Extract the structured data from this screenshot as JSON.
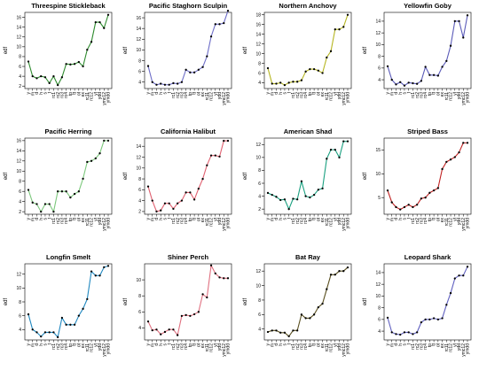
{
  "chart_data": [
    {
      "type": "line",
      "title": "Threespine Stickleback",
      "ylabel": "edf",
      "yticks": [
        2,
        4,
        6,
        8,
        10,
        12,
        14,
        16
      ],
      "ylim": [
        1.5,
        17
      ],
      "color": "#2e8b2e",
      "x": [
        "y",
        "m",
        "d",
        "h",
        "s",
        "t",
        "rc1",
        "rc2",
        "rc3",
        "rc4",
        "tp",
        "tt",
        "ot",
        "ex",
        "rc11",
        "rc12",
        "yt",
        "ydd",
        "ymc12",
        "ymdd"
      ],
      "values": [
        7,
        4,
        3.6,
        4,
        3.8,
        2.6,
        4,
        2.2,
        3.8,
        6.5,
        6.4,
        6.5,
        6.9,
        6,
        9.4,
        11,
        15,
        15,
        13.8,
        16.5
      ]
    },
    {
      "type": "line",
      "title": "Pacific Staghorn Sculpin",
      "ylabel": "edf",
      "yticks": [
        4,
        6,
        8,
        10,
        12,
        14,
        16
      ],
      "ylim": [
        2.8,
        17
      ],
      "color": "#6e6ec8",
      "x": [
        "y",
        "m",
        "d",
        "h",
        "s",
        "t",
        "rc1",
        "rc2",
        "rc3",
        "rc4",
        "tp",
        "tt",
        "ot",
        "ex",
        "rc11",
        "rc12",
        "yt",
        "ydd",
        "ymc12",
        "ymdd"
      ],
      "values": [
        7,
        4,
        3.5,
        3.7,
        3.5,
        3.5,
        3.8,
        3.7,
        4,
        6.3,
        5.8,
        5.8,
        6.3,
        6.8,
        8.8,
        12.5,
        14.8,
        14.8,
        15,
        17.3
      ]
    },
    {
      "type": "line",
      "title": "Northern Anchovy",
      "ylabel": "edf",
      "yticks": [
        4,
        6,
        8,
        10,
        12,
        14,
        16,
        18
      ],
      "ylim": [
        2.8,
        18.5
      ],
      "color": "#b5b520",
      "x": [
        "y",
        "m",
        "d",
        "h",
        "s",
        "t",
        "rc1",
        "rc2",
        "rc3",
        "rc4",
        "tp",
        "tt",
        "ot",
        "ex",
        "rc11",
        "rc12",
        "yt",
        "ydd",
        "ymc12",
        "ymdd"
      ],
      "values": [
        7,
        3.8,
        3.8,
        4,
        3.5,
        4,
        4.2,
        4.2,
        4.5,
        6.3,
        6.8,
        6.8,
        6.5,
        6,
        9.2,
        10.5,
        15,
        15,
        15.5,
        18
      ]
    },
    {
      "type": "line",
      "title": "Yellowfin Goby",
      "ylabel": "edf",
      "yticks": [
        4,
        6,
        8,
        10,
        12,
        14
      ],
      "ylim": [
        2.5,
        15.5
      ],
      "color": "#5a5ab8",
      "x": [
        "y",
        "m",
        "d",
        "h",
        "s",
        "t",
        "rc1",
        "rc2",
        "rc3",
        "rc4",
        "tp",
        "tt",
        "ot",
        "ex",
        "rc11",
        "rc12",
        "yt",
        "ydd",
        "ymc12",
        "ymdd"
      ],
      "values": [
        6.3,
        4,
        3.2,
        3.6,
        3,
        3.5,
        3.4,
        3.3,
        3.8,
        6.2,
        4.8,
        4.8,
        4.7,
        6.2,
        7.2,
        9.8,
        14,
        14,
        11.2,
        15
      ]
    },
    {
      "type": "line",
      "title": "Pacific Herring",
      "ylabel": "edf",
      "yticks": [
        2,
        4,
        6,
        8,
        10,
        12,
        14,
        16
      ],
      "ylim": [
        1.5,
        16.5
      ],
      "color": "#7cc87c",
      "x": [
        "y",
        "m",
        "d",
        "h",
        "s",
        "t",
        "rc1",
        "rc2",
        "rc3",
        "rc4",
        "tp",
        "tt",
        "ot",
        "ex",
        "rc11",
        "rc12",
        "yt",
        "ydd",
        "ymc12",
        "ymdd"
      ],
      "values": [
        6.3,
        3.8,
        3.5,
        2,
        3.5,
        3.5,
        2,
        6,
        6,
        6,
        4.8,
        5.5,
        6,
        8.5,
        11.8,
        12,
        12.5,
        13.5,
        16,
        16
      ]
    },
    {
      "type": "line",
      "title": "California Halibut",
      "ylabel": "edf",
      "yticks": [
        2,
        4,
        6,
        8,
        10,
        12,
        14
      ],
      "ylim": [
        1.5,
        15.5
      ],
      "color": "#e06070",
      "x": [
        "y",
        "m",
        "d",
        "h",
        "s",
        "t",
        "rc1",
        "rc2",
        "rc3",
        "rc4",
        "tp",
        "tt",
        "ot",
        "ex",
        "rc11",
        "rc12",
        "yt",
        "ydd",
        "ymc12",
        "ymdd"
      ],
      "values": [
        6.6,
        4,
        2,
        2.2,
        3.5,
        3.5,
        2.5,
        3.5,
        4,
        5.5,
        5.5,
        4.2,
        6.2,
        8,
        10.5,
        12.3,
        12.3,
        12.1,
        15,
        15
      ]
    },
    {
      "type": "line",
      "title": "American Shad",
      "ylabel": "edf",
      "yticks": [
        2,
        4,
        6,
        8,
        10,
        12
      ],
      "ylim": [
        1.2,
        13
      ],
      "color": "#1aa080",
      "x": [
        "y",
        "m",
        "d",
        "h",
        "s",
        "t",
        "rc1",
        "rc2",
        "rc3",
        "rc4",
        "tp",
        "tt",
        "ot",
        "ex",
        "rc11",
        "rc12",
        "yt",
        "ydd",
        "ymc12",
        "ymdd"
      ],
      "values": [
        4.5,
        4.2,
        3.9,
        3.4,
        3.5,
        2,
        3.6,
        3.5,
        6.3,
        4,
        3.8,
        4.2,
        5,
        5.2,
        9.8,
        11.2,
        11.2,
        10,
        12.5,
        12.5
      ]
    },
    {
      "type": "line",
      "title": "Striped Bass",
      "ylabel": "edf",
      "yticks": [
        5,
        10,
        15
      ],
      "ylim": [
        1.5,
        17.5
      ],
      "color": "#c02020",
      "x": [
        "y",
        "m",
        "d",
        "h",
        "s",
        "t",
        "rc1",
        "rc2",
        "rc3",
        "rc4",
        "tp",
        "tt",
        "ot",
        "ex",
        "rc11",
        "rc12",
        "yt",
        "ydd",
        "ymc12",
        "ymdd"
      ],
      "values": [
        6.5,
        4,
        3,
        2.5,
        3,
        3.5,
        3,
        3.5,
        4.8,
        5,
        6,
        6.5,
        7,
        11,
        12.5,
        13,
        13.5,
        14.5,
        16.5,
        16.5
      ]
    },
    {
      "type": "line",
      "title": "Longfin Smelt",
      "ylabel": "edf",
      "yticks": [
        4,
        6,
        8,
        10,
        12
      ],
      "ylim": [
        2.5,
        13.5
      ],
      "color": "#2088c0",
      "x": [
        "y",
        "m",
        "d",
        "h",
        "s",
        "t",
        "rc1",
        "rc2",
        "rc3",
        "rc4",
        "tp",
        "tt",
        "ot",
        "ex",
        "rc11",
        "rc12",
        "yt",
        "ydd",
        "ymc12",
        "ymdd"
      ],
      "values": [
        6.2,
        4,
        3.6,
        3,
        3.6,
        3.6,
        3.6,
        2.9,
        5.7,
        4.7,
        4.7,
        4.7,
        6,
        7,
        8.4,
        12.4,
        11.8,
        11.8,
        13,
        13.2
      ]
    },
    {
      "type": "line",
      "title": "Shiner Perch",
      "ylabel": "edf",
      "yticks": [
        4,
        6,
        8,
        10
      ],
      "ylim": [
        2.5,
        12
      ],
      "color": "#e07080",
      "x": [
        "y",
        "m",
        "d",
        "h",
        "s",
        "t",
        "rc1",
        "rc2",
        "rc3",
        "rc4",
        "tp",
        "tt",
        "ot",
        "ex",
        "rc11",
        "rc12",
        "yt",
        "ydd",
        "ymc12",
        "ymdd"
      ],
      "values": [
        4.8,
        3.7,
        3.8,
        3.2,
        3.5,
        3.8,
        3.8,
        3.1,
        5.5,
        5.6,
        5.5,
        5.7,
        6,
        8.2,
        7.8,
        11.8,
        10.8,
        10.3,
        10.2,
        10.2
      ]
    },
    {
      "type": "line",
      "title": "Bat Ray",
      "ylabel": "edf",
      "yticks": [
        4,
        6,
        8,
        10,
        12
      ],
      "ylim": [
        2.5,
        13
      ],
      "color": "#5a5020",
      "x": [
        "y",
        "m",
        "d",
        "h",
        "s",
        "t",
        "rc1",
        "rc2",
        "rc3",
        "rc4",
        "tp",
        "tt",
        "ot",
        "ex",
        "rc11",
        "rc12",
        "yt",
        "ydd",
        "ymc12",
        "ymdd"
      ],
      "values": [
        3.6,
        3.8,
        3.8,
        3.5,
        3.5,
        3,
        3.8,
        3.8,
        6,
        5.5,
        5.5,
        6,
        7,
        7.5,
        9.5,
        11.5,
        11.5,
        12,
        12,
        12.5
      ]
    },
    {
      "type": "line",
      "title": "Leopard Shark",
      "ylabel": "edf",
      "yticks": [
        4,
        6,
        8,
        10,
        12,
        14
      ],
      "ylim": [
        2.5,
        15.5
      ],
      "color": "#6060c0",
      "x": [
        "y",
        "m",
        "d",
        "h",
        "s",
        "t",
        "rc1",
        "rc2",
        "rc3",
        "rc4",
        "tp",
        "tt",
        "ot",
        "ex",
        "rc11",
        "rc12",
        "yt",
        "ydd",
        "ymc12",
        "ymdd"
      ],
      "values": [
        6.3,
        3.8,
        3.5,
        3.4,
        3.8,
        3.8,
        3.5,
        3.8,
        5.5,
        6,
        6,
        6.2,
        6,
        6.2,
        8.5,
        10.5,
        13,
        13.5,
        13.5,
        15
      ]
    }
  ]
}
